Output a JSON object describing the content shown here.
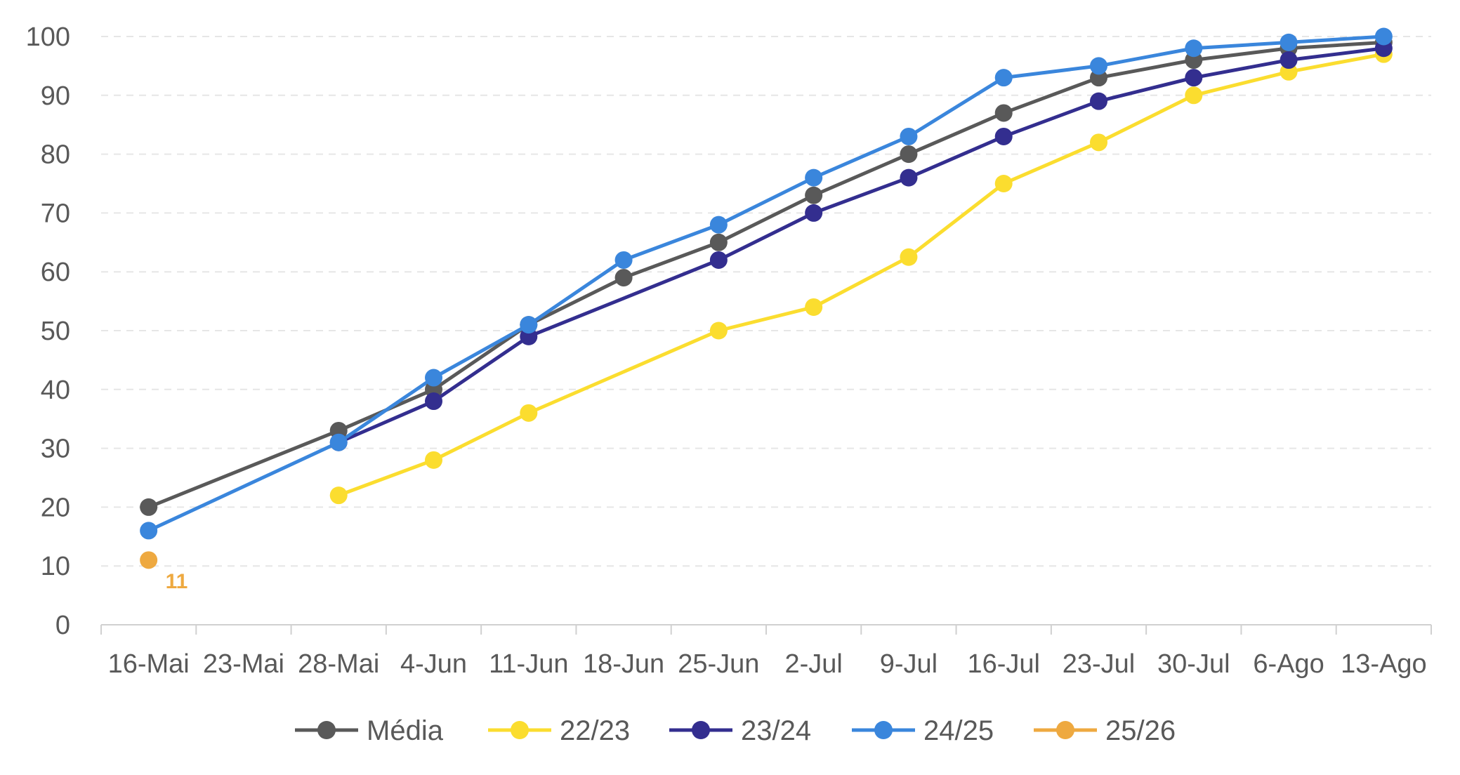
{
  "chart_data": {
    "type": "line",
    "title": "",
    "xlabel": "",
    "ylabel": "",
    "categories": [
      "16-Mai",
      "23-Mai",
      "28-Mai",
      "4-Jun",
      "11-Jun",
      "18-Jun",
      "25-Jun",
      "2-Jul",
      "9-Jul",
      "16-Jul",
      "23-Jul",
      "30-Jul",
      "6-Ago",
      "13-Ago"
    ],
    "ylim": [
      0,
      100
    ],
    "yticks": [
      0,
      10,
      20,
      30,
      40,
      50,
      60,
      70,
      80,
      90,
      100
    ],
    "grid": "horizontal dashed",
    "legend_position": "bottom",
    "series": [
      {
        "name": "Média",
        "color": "#595959",
        "values": [
          20,
          null,
          33,
          40,
          51,
          59,
          65,
          73,
          80,
          87,
          93,
          96,
          98,
          99
        ]
      },
      {
        "name": "22/23",
        "color": "#FBDD2F",
        "values": [
          null,
          null,
          22,
          28,
          36,
          null,
          50,
          54,
          62.5,
          75,
          82,
          90,
          94,
          97
        ]
      },
      {
        "name": "23/24",
        "color": "#332E8F",
        "values": [
          null,
          null,
          31,
          38,
          49,
          null,
          62,
          70,
          76,
          83,
          89,
          93,
          96,
          98
        ]
      },
      {
        "name": "24/25",
        "color": "#3A86DC",
        "values": [
          16,
          null,
          31,
          42,
          51,
          62,
          68,
          76,
          83,
          93,
          95,
          98,
          99,
          100
        ]
      },
      {
        "name": "25/26",
        "color": "#EEA940",
        "values": [
          11,
          null,
          null,
          null,
          null,
          null,
          null,
          null,
          null,
          null,
          null,
          null,
          null,
          null
        ]
      }
    ],
    "annotations": [
      {
        "series": "25/26",
        "category": "16-Mai",
        "text": "11"
      }
    ]
  }
}
